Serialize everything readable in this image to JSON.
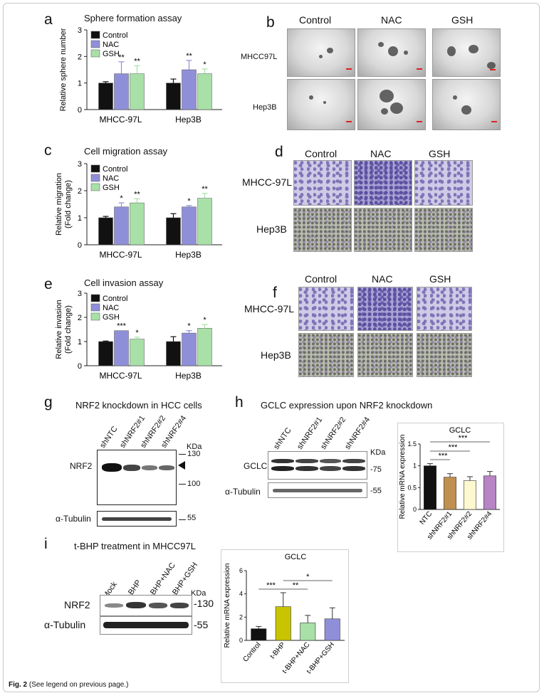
{
  "figure": {
    "caption_bold": "Fig. 2",
    "caption_text": "(See legend on previous page.)"
  },
  "legend": {
    "control": "Control",
    "nac": "NAC",
    "gsh": "GSH"
  },
  "colors": {
    "control": "#111111",
    "nac": "#8f8fd9",
    "gsh": "#a8e0a8",
    "tbhp": "#c8c400"
  },
  "panel_a": {
    "label": "a",
    "title": "Sphere formation assay"
  },
  "panel_b": {
    "label": "b",
    "columns": [
      "Control",
      "NAC",
      "GSH"
    ],
    "rows": [
      "MHCC97L",
      "Hep3B"
    ]
  },
  "panel_c": {
    "label": "c",
    "title": "Cell migration assay"
  },
  "panel_d": {
    "label": "d",
    "columns": [
      "Control",
      "NAC",
      "GSH"
    ],
    "rows": [
      "MHCC-97L",
      "Hep3B"
    ]
  },
  "panel_e": {
    "label": "e",
    "title": "Cell invasion assay"
  },
  "panel_f": {
    "label": "f",
    "columns": [
      "Control",
      "NAC",
      "GSH"
    ],
    "rows": [
      "MHCC-97L",
      "Hep3B"
    ]
  },
  "panel_g": {
    "label": "g",
    "title": "NRF2 knockdown in HCC cells",
    "lanes": [
      "shNTC",
      "shNRF2#1",
      "shNRF2#2",
      "shNRF2#4"
    ],
    "kda": "KDa",
    "mw": [
      "130",
      "100",
      "55"
    ],
    "proteins": [
      "NRF2",
      "α-Tubulin"
    ]
  },
  "panel_h": {
    "label": "h",
    "title": "GCLC expression upon NRF2 knockdown",
    "lanes": [
      "shNTC",
      "shNRF2#1",
      "shNRF2#2",
      "shNRF2#4"
    ],
    "kda": "KDa",
    "mw": [
      "-75",
      "-55"
    ],
    "proteins": [
      "GCLC",
      "α-Tubulin"
    ]
  },
  "panel_i": {
    "label": "i",
    "title": "t-BHP treatment in MHCC97L",
    "lanes": [
      "Mock",
      "t-BHP",
      "t-BHP+NAC",
      "t-BHP+GSH"
    ],
    "kda": "KDa",
    "mw": [
      "-130",
      "-55"
    ],
    "proteins": [
      "NRF2",
      "α-Tubulin"
    ]
  },
  "chart_data": [
    {
      "id": "a",
      "type": "bar",
      "title": "Sphere formation assay",
      "ylabel": "Relative sphere number",
      "ylim": [
        0,
        3
      ],
      "yticks": [
        0,
        1,
        2,
        3
      ],
      "categories": [
        "MHCC-97L",
        "Hep3B"
      ],
      "series": [
        {
          "name": "Control",
          "values": [
            1.0,
            1.0
          ],
          "errors": [
            0.05,
            0.15
          ],
          "sig": [
            "",
            ""
          ]
        },
        {
          "name": "NAC",
          "values": [
            1.35,
            1.5
          ],
          "errors": [
            0.45,
            0.35
          ],
          "sig": [
            "**",
            "**"
          ]
        },
        {
          "name": "GSH",
          "values": [
            1.35,
            1.35
          ],
          "errors": [
            0.3,
            0.18
          ],
          "sig": [
            "**",
            "*"
          ]
        }
      ]
    },
    {
      "id": "c",
      "type": "bar",
      "title": "Cell migration assay",
      "ylabel": "Relative migration (Fold change)",
      "ylim": [
        0,
        3
      ],
      "yticks": [
        0,
        1,
        2,
        3
      ],
      "categories": [
        "MHCC-97L",
        "Hep3B"
      ],
      "series": [
        {
          "name": "Control",
          "values": [
            1.0,
            1.0
          ],
          "errors": [
            0.05,
            0.15
          ],
          "sig": [
            "",
            ""
          ]
        },
        {
          "name": "NAC",
          "values": [
            1.4,
            1.4
          ],
          "errors": [
            0.15,
            0.05
          ],
          "sig": [
            "*",
            "*"
          ]
        },
        {
          "name": "GSH",
          "values": [
            1.55,
            1.72
          ],
          "errors": [
            0.15,
            0.18
          ],
          "sig": [
            "**",
            "**"
          ]
        }
      ]
    },
    {
      "id": "e",
      "type": "bar",
      "title": "Cell invasion assay",
      "ylabel": "Relative invasion (Fold change)",
      "ylim": [
        0,
        3
      ],
      "yticks": [
        0,
        1,
        2,
        3
      ],
      "categories": [
        "MHCC-97L",
        "Hep3B"
      ],
      "series": [
        {
          "name": "Control",
          "values": [
            1.0,
            1.0
          ],
          "errors": [
            0.02,
            0.2
          ],
          "sig": [
            "",
            ""
          ]
        },
        {
          "name": "NAC",
          "values": [
            1.45,
            1.35
          ],
          "errors": [
            0.0,
            0.1
          ],
          "sig": [
            "***",
            "*"
          ]
        },
        {
          "name": "GSH",
          "values": [
            1.1,
            1.55
          ],
          "errors": [
            0.08,
            0.15
          ],
          "sig": [
            "*",
            "*"
          ]
        }
      ]
    },
    {
      "id": "h",
      "type": "bar",
      "title": "GCLC",
      "ylabel": "Relative mRNA expression",
      "ylim": [
        0,
        1.5
      ],
      "yticks": [
        0,
        0.5,
        1.0,
        1.5
      ],
      "categories": [
        "NTC",
        "shNRF2#1",
        "shNRF2#2",
        "shNRF2#4"
      ],
      "values": [
        1.0,
        0.74,
        0.66,
        0.77
      ],
      "errors": [
        0.05,
        0.08,
        0.09,
        0.1
      ],
      "bar_colors": [
        "#111111",
        "#c09050",
        "#fdf8d0",
        "#b784c4"
      ],
      "sig_brackets": [
        {
          "from": 0,
          "to": 1,
          "label": "***"
        },
        {
          "from": 0,
          "to": 2,
          "label": "***"
        },
        {
          "from": 0,
          "to": 3,
          "label": "***"
        }
      ]
    },
    {
      "id": "i",
      "type": "bar",
      "title": "GCLC",
      "ylabel": "Relative mRNA expression",
      "ylim": [
        0,
        6
      ],
      "yticks": [
        0,
        2,
        4,
        6
      ],
      "categories": [
        "Control",
        "t-BHP",
        "t-BHP+NAC",
        "t-BHP+GSH"
      ],
      "values": [
        1.0,
        2.9,
        1.5,
        1.85
      ],
      "errors": [
        0.2,
        1.2,
        0.65,
        0.95
      ],
      "bar_colors": [
        "#111111",
        "#c8c400",
        "#a8e0a8",
        "#8f8fd9"
      ],
      "sig_brackets": [
        {
          "from": 0,
          "to": 1,
          "label": "***"
        },
        {
          "from": 1,
          "to": 2,
          "label": "**"
        },
        {
          "from": 1,
          "to": 3,
          "label": "*"
        }
      ]
    }
  ]
}
